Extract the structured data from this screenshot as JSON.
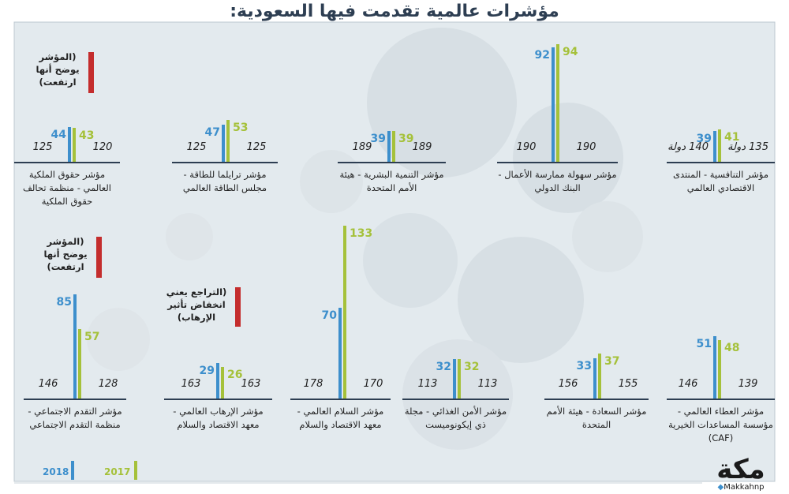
{
  "title": "مؤشرات عالمية تقدمت فيها السعودية:",
  "colors": {
    "y2018": "#3d8fcc",
    "y2017": "#a5c13a",
    "note": "#c42d2d",
    "baseline": "#2d3e52"
  },
  "legend": {
    "y2018": "2018",
    "y2017": "2017"
  },
  "logo": {
    "mark": "مكة",
    "handle": "Makkahnp"
  },
  "notes": {
    "rise": "(المؤشر يوضح أنها ارتفعت)",
    "rise2": "(المؤشر يوضح أنها ارتفعت)",
    "terror": "(التراجع يعني انخفاض تأثير الإرهاب)"
  },
  "panels": [
    {
      "name": "مؤشر التنافسية - المنتدى الاقتصادي العالمي",
      "v2018": 39,
      "v2017": 41,
      "ranks_left": "140 دولة",
      "ranks_right": "135 دولة"
    },
    {
      "name": "مؤشر سهولة ممارسة الأعمال - البنك الدولي",
      "v2018": 92,
      "v2017": 94,
      "ranks_left": "190",
      "ranks_right": "190"
    },
    {
      "name": "مؤشر التنمية البشرية - هيئة الأمم المتحدة",
      "v2018": 39,
      "v2017": 39,
      "ranks_left": "189",
      "ranks_right": "189"
    },
    {
      "name": "مؤشر ترايلما للطاقة - مجلس الطاقة العالمي",
      "v2018": 47,
      "v2017": 53,
      "ranks_left": "125",
      "ranks_right": "125"
    },
    {
      "name": "مؤشر حقوق الملكية العالمي - منظمة تحالف حقوق الملكية",
      "v2018": 44,
      "v2017": 43,
      "ranks_left": "125",
      "ranks_right": "120"
    },
    {
      "name": "مؤشر العطاء العالمي - مؤسسة المساعدات الخيرية (CAF)",
      "v2018": 51,
      "v2017": 48,
      "ranks_left": "146",
      "ranks_right": "139"
    },
    {
      "name": "مؤشر السعادة - هيئة الأمم المتحدة",
      "v2018": 33,
      "v2017": 37,
      "ranks_left": "156",
      "ranks_right": "155"
    },
    {
      "name": "مؤشر الأمن الغذائي - مجلة ذي إيكونوميست",
      "v2018": 32,
      "v2017": 32,
      "ranks_left": "113",
      "ranks_right": "113"
    },
    {
      "name": "مؤشر السلام العالمي - معهد الاقتصاد والسلام",
      "v2018": 70,
      "v2017": 133,
      "ranks_left": "178",
      "ranks_right": "170"
    },
    {
      "name": "مؤشر الإرهاب العالمي - معهد الاقتصاد والسلام",
      "v2018": 29,
      "v2017": 26,
      "ranks_left": "163",
      "ranks_right": "163"
    },
    {
      "name": "مؤشر التقدم الاجتماعي - منظمة التقدم الاجتماعي",
      "v2018": 85,
      "v2017": 57,
      "ranks_left": "146",
      "ranks_right": "128"
    }
  ],
  "chart_data": {
    "type": "bar",
    "title": "مؤشرات عالمية تقدمت فيها السعودية:",
    "categories": [
      "مؤشر التنافسية - المنتدى الاقتصادي العالمي",
      "مؤشر سهولة ممارسة الأعمال - البنك الدولي",
      "مؤشر التنمية البشرية - هيئة الأمم المتحدة",
      "مؤشر ترايلما للطاقة - مجلس الطاقة العالمي",
      "مؤشر حقوق الملكية العالمي - منظمة تحالف حقوق الملكية",
      "مؤشر العطاء العالمي - مؤسسة المساعدات الخيرية (CAF)",
      "مؤشر السعادة - هيئة الأمم المتحدة",
      "مؤشر الأمن الغذائي - مجلة ذي إيكونوميست",
      "مؤشر السلام العالمي - معهد الاقتصاد والسلام",
      "مؤشر الإرهاب العالمي - معهد الاقتصاد والسلام",
      "مؤشر التقدم الاجتماعي - منظمة التقدم الاجتماعي"
    ],
    "series": [
      {
        "name": "2018",
        "values": [
          39,
          92,
          39,
          47,
          44,
          51,
          33,
          32,
          70,
          29,
          85
        ]
      },
      {
        "name": "2017",
        "values": [
          41,
          94,
          39,
          53,
          43,
          48,
          37,
          32,
          133,
          26,
          57
        ]
      }
    ],
    "legend_position": "bottom-left",
    "grid": false
  }
}
